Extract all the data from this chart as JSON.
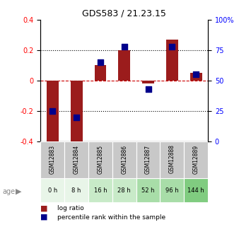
{
  "title": "GDS583 / 21.23.15",
  "samples": [
    "GSM12883",
    "GSM12884",
    "GSM12885",
    "GSM12886",
    "GSM12887",
    "GSM12888",
    "GSM12889"
  ],
  "ages": [
    "0 h",
    "8 h",
    "16 h",
    "28 h",
    "52 h",
    "96 h",
    "144 h"
  ],
  "log_ratio": [
    -0.43,
    -0.42,
    0.1,
    0.2,
    -0.02,
    0.27,
    0.05
  ],
  "percentile_rank": [
    25,
    20,
    65,
    78,
    43,
    78,
    55
  ],
  "ylim_left": [
    -0.4,
    0.4
  ],
  "ylim_right": [
    0,
    100
  ],
  "yticks_left": [
    -0.4,
    -0.2,
    0.0,
    0.2,
    0.4
  ],
  "yticks_right": [
    0,
    25,
    50,
    75,
    100
  ],
  "ytick_labels_right": [
    "0",
    "25",
    "50",
    "75",
    "100%"
  ],
  "bar_color": "#9b1c1c",
  "dot_color": "#00008b",
  "hline_color": "#cc0000",
  "grid_color": "#000000",
  "age_colors": [
    "#e8f5e8",
    "#e8f5e8",
    "#c8eac8",
    "#c8eac8",
    "#a8dda8",
    "#a8dda8",
    "#80cc80"
  ],
  "bar_width": 0.5,
  "dot_size": 30,
  "gsm_row_color": "#c8c8c8"
}
